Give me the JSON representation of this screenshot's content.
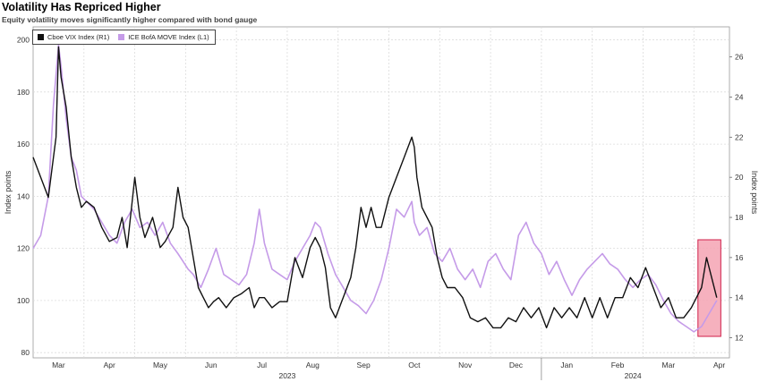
{
  "title": "Volatility Has Repriced Higher",
  "subtitle": "Equity volatility moves significantly higher compared with bond gauge",
  "colors": {
    "vix": "#111111",
    "move": "#c59be8",
    "highlight_fill": "#f4a3b3",
    "highlight_stroke": "#d0204a",
    "grid": "#dcdcdc"
  },
  "chart_data": {
    "type": "line",
    "title": "Volatility Has Repriced Higher",
    "subtitle": "Equity volatility moves significantly higher compared with bond gauge",
    "ylabel_left": "Index points",
    "ylabel_right": "Index points",
    "y_left_range": [
      78,
      205
    ],
    "y_left_ticks": [
      "80",
      "100",
      "120",
      "140",
      "160",
      "180",
      "200"
    ],
    "y_right_range": [
      11,
      27.5
    ],
    "y_right_ticks": [
      "12",
      "14",
      "16",
      "18",
      "20",
      "22",
      "24",
      "26"
    ],
    "x_range": [
      0,
      13.7
    ],
    "x_ticks": [
      {
        "label": "Mar",
        "pos": 0.5
      },
      {
        "label": "Apr",
        "pos": 1.5
      },
      {
        "label": "May",
        "pos": 2.5
      },
      {
        "label": "Jun",
        "pos": 3.5
      },
      {
        "label": "Jul",
        "pos": 4.5
      },
      {
        "label": "Aug",
        "pos": 5.5
      },
      {
        "label": "Sep",
        "pos": 6.5
      },
      {
        "label": "Oct",
        "pos": 7.5
      },
      {
        "label": "Nov",
        "pos": 8.5
      },
      {
        "label": "Dec",
        "pos": 9.5
      },
      {
        "label": "Jan",
        "pos": 10.5
      },
      {
        "label": "Feb",
        "pos": 11.5
      },
      {
        "label": "Mar",
        "pos": 12.5
      },
      {
        "label": "Apr",
        "pos": 13.5
      }
    ],
    "year_labels": [
      {
        "label": "2023",
        "pos": 5.0
      },
      {
        "label": "2024",
        "pos": 11.8
      }
    ],
    "grid": true,
    "legend_position": "top-left",
    "highlight": {
      "x_start": 13.08,
      "x_end": 13.53
    },
    "series": [
      {
        "name": "Cboe VIX Index (R1)",
        "axis": "right",
        "x": [
          0,
          0.15,
          0.3,
          0.45,
          0.5,
          0.55,
          0.65,
          0.75,
          0.85,
          0.95,
          1.05,
          1.2,
          1.35,
          1.5,
          1.65,
          1.75,
          1.85,
          2.0,
          2.1,
          2.2,
          2.35,
          2.5,
          2.6,
          2.75,
          2.85,
          2.95,
          3.05,
          3.15,
          3.25,
          3.35,
          3.45,
          3.55,
          3.65,
          3.8,
          3.95,
          4.1,
          4.25,
          4.35,
          4.45,
          4.55,
          4.7,
          4.85,
          5.0,
          5.15,
          5.3,
          5.45,
          5.55,
          5.65,
          5.75,
          5.85,
          5.95,
          6.1,
          6.25,
          6.35,
          6.45,
          6.55,
          6.65,
          6.75,
          6.85,
          7.0,
          7.15,
          7.3,
          7.45,
          7.5,
          7.55,
          7.65,
          7.75,
          7.85,
          7.95,
          8.05,
          8.15,
          8.3,
          8.45,
          8.6,
          8.75,
          8.9,
          9.05,
          9.2,
          9.35,
          9.5,
          9.65,
          9.8,
          9.95,
          10.1,
          10.25,
          10.4,
          10.55,
          10.7,
          10.85,
          11.0,
          11.15,
          11.3,
          11.45,
          11.6,
          11.75,
          11.9,
          12.05,
          12.2,
          12.35,
          12.5,
          12.65,
          12.8,
          12.95,
          13.05,
          13.15,
          13.25,
          13.35,
          13.45
        ],
        "values": [
          21,
          20,
          19,
          22,
          26.5,
          25,
          23.5,
          21,
          19.5,
          18.5,
          18.8,
          18.5,
          17.5,
          16.8,
          17,
          18,
          16.5,
          20,
          18,
          17,
          18,
          16.5,
          16.8,
          17.5,
          19.5,
          18,
          17.5,
          16,
          14.5,
          14,
          13.5,
          13.8,
          14,
          13.5,
          14,
          14.2,
          14.5,
          13.5,
          14,
          14,
          13.5,
          13.8,
          13.8,
          16,
          15,
          16.5,
          17,
          16.5,
          15.5,
          13.5,
          13,
          14,
          15,
          16.5,
          18.5,
          17.5,
          18.5,
          17.5,
          17.5,
          19,
          20,
          21,
          22,
          21.5,
          20,
          18.5,
          18,
          17.5,
          16,
          15,
          14.5,
          14.5,
          14,
          13,
          12.8,
          13,
          12.5,
          12.5,
          13,
          12.8,
          13.5,
          13,
          13.5,
          12.5,
          13.5,
          13,
          13.5,
          13,
          14,
          13,
          14,
          13,
          14,
          14,
          15,
          14.5,
          15.5,
          14.5,
          13.5,
          14,
          13,
          13,
          13.5,
          14,
          14.5,
          16,
          15,
          14
        ]
      },
      {
        "name": "ICE BofA MOVE Index (L1)",
        "axis": "left",
        "x": [
          0,
          0.15,
          0.3,
          0.4,
          0.5,
          0.55,
          0.65,
          0.75,
          0.85,
          0.95,
          1.05,
          1.2,
          1.35,
          1.5,
          1.65,
          1.8,
          1.95,
          2.1,
          2.25,
          2.4,
          2.55,
          2.7,
          2.85,
          2.95,
          3.05,
          3.15,
          3.3,
          3.45,
          3.6,
          3.75,
          3.9,
          4.05,
          4.2,
          4.35,
          4.45,
          4.55,
          4.7,
          4.85,
          5.0,
          5.15,
          5.3,
          5.45,
          5.55,
          5.65,
          5.8,
          5.95,
          6.1,
          6.25,
          6.4,
          6.55,
          6.7,
          6.85,
          7.0,
          7.15,
          7.3,
          7.45,
          7.5,
          7.6,
          7.75,
          7.9,
          8.05,
          8.2,
          8.35,
          8.5,
          8.65,
          8.8,
          8.95,
          9.1,
          9.25,
          9.4,
          9.55,
          9.7,
          9.85,
          10.0,
          10.15,
          10.3,
          10.45,
          10.6,
          10.75,
          10.9,
          11.05,
          11.2,
          11.35,
          11.5,
          11.65,
          11.8,
          11.95,
          12.1,
          12.25,
          12.4,
          12.55,
          12.7,
          12.85,
          13.0,
          13.15,
          13.3,
          13.45
        ],
        "values": [
          120,
          125,
          140,
          175,
          198,
          190,
          170,
          155,
          150,
          140,
          138,
          135,
          130,
          125,
          122,
          130,
          135,
          128,
          130,
          125,
          130,
          122,
          118,
          115,
          112,
          110,
          105,
          112,
          120,
          110,
          108,
          106,
          110,
          122,
          135,
          122,
          112,
          110,
          108,
          115,
          120,
          125,
          130,
          128,
          118,
          110,
          105,
          100,
          98,
          95,
          100,
          108,
          120,
          135,
          132,
          138,
          130,
          125,
          128,
          118,
          115,
          120,
          112,
          108,
          112,
          105,
          115,
          118,
          112,
          108,
          125,
          130,
          122,
          118,
          110,
          115,
          108,
          102,
          108,
          112,
          115,
          118,
          114,
          112,
          108,
          105,
          108,
          110,
          106,
          100,
          95,
          92,
          90,
          88,
          90,
          95,
          100
        ]
      }
    ]
  }
}
